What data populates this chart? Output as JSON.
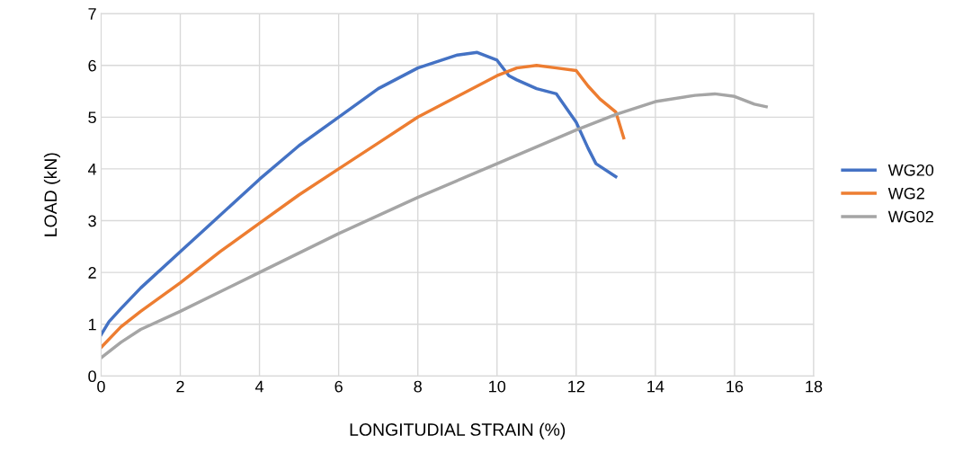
{
  "chart_data": {
    "type": "line",
    "xlabel": "LONGITUDIAL STRAIN (%)",
    "ylabel": "LOAD (kN)",
    "xlim": [
      0,
      18
    ],
    "xticks": [
      0,
      2,
      4,
      6,
      8,
      10,
      12,
      14,
      16,
      18
    ],
    "ylim": [
      0,
      7
    ],
    "yticks": [
      0,
      1,
      2,
      3,
      4,
      5,
      6,
      7
    ],
    "grid": true,
    "legend": "right",
    "marker": "none",
    "line_style": "solid",
    "series": [
      {
        "name": "WG20",
        "color": "#4472c4",
        "x": [
          0,
          0.2,
          0.5,
          1,
          2,
          3,
          4,
          5,
          6,
          7,
          8,
          9,
          9.5,
          10,
          10.3,
          10.5,
          11,
          11.5,
          12,
          12.3,
          12.5,
          13
        ],
        "values": [
          0.8,
          1.05,
          1.3,
          1.7,
          2.4,
          3.1,
          3.8,
          4.45,
          5.0,
          5.55,
          5.95,
          6.2,
          6.25,
          6.1,
          5.8,
          5.72,
          5.55,
          5.45,
          4.9,
          4.4,
          4.1,
          3.85
        ]
      },
      {
        "name": "WG2",
        "color": "#ed7d31",
        "x": [
          0,
          0.5,
          1,
          2,
          3,
          4,
          5,
          6,
          7,
          8,
          9,
          10,
          10.5,
          11,
          11.5,
          12,
          12.3,
          12.6,
          13,
          13.2
        ],
        "values": [
          0.55,
          0.95,
          1.25,
          1.8,
          2.4,
          2.95,
          3.5,
          4.0,
          4.5,
          5.0,
          5.4,
          5.8,
          5.95,
          6.0,
          5.95,
          5.9,
          5.6,
          5.35,
          5.1,
          4.6
        ]
      },
      {
        "name": "WG02",
        "color": "#a5a5a5",
        "x": [
          0,
          0.5,
          1,
          2,
          4,
          6,
          8,
          10,
          12,
          13,
          14,
          15,
          15.5,
          16,
          16.5,
          16.8
        ],
        "values": [
          0.35,
          0.65,
          0.9,
          1.25,
          2.0,
          2.75,
          3.45,
          4.1,
          4.75,
          5.05,
          5.3,
          5.42,
          5.45,
          5.4,
          5.25,
          5.2
        ]
      }
    ]
  }
}
